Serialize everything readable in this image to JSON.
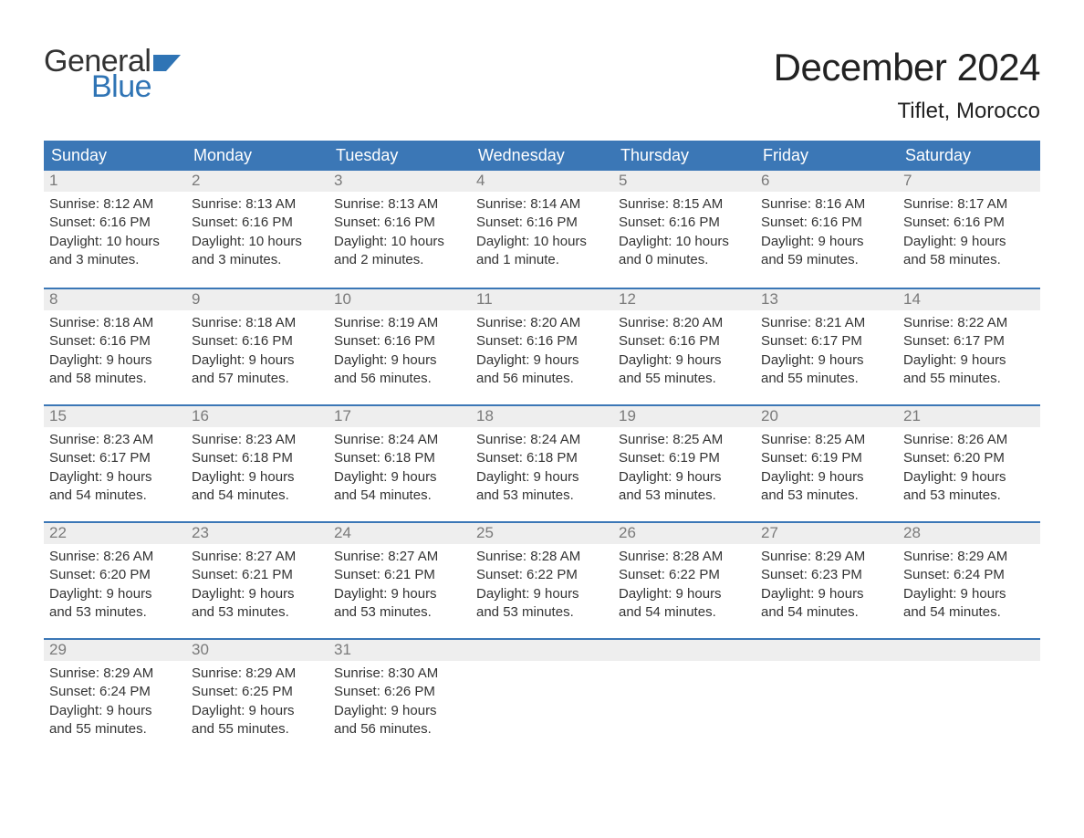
{
  "logo": {
    "word1": "General",
    "word2": "Blue"
  },
  "title": "December 2024",
  "location": "Tiflet, Morocco",
  "colors": {
    "header_bg": "#3b77b6",
    "header_text": "#ffffff",
    "week_border": "#3b77b6",
    "daynum_bg": "#eeeeee",
    "daynum_text": "#7a7a7a",
    "body_text": "#333333",
    "logo_blue": "#2f74b5",
    "background": "#ffffff"
  },
  "fonts": {
    "month_title_size_pt": 32,
    "location_size_pt": 18,
    "dow_size_pt": 14,
    "daynum_size_pt": 13,
    "body_size_pt": 11
  },
  "dow": [
    "Sunday",
    "Monday",
    "Tuesday",
    "Wednesday",
    "Thursday",
    "Friday",
    "Saturday"
  ],
  "weeks": [
    [
      {
        "n": "1",
        "sunrise": "Sunrise: 8:12 AM",
        "sunset": "Sunset: 6:16 PM",
        "d1": "Daylight: 10 hours",
        "d2": "and 3 minutes."
      },
      {
        "n": "2",
        "sunrise": "Sunrise: 8:13 AM",
        "sunset": "Sunset: 6:16 PM",
        "d1": "Daylight: 10 hours",
        "d2": "and 3 minutes."
      },
      {
        "n": "3",
        "sunrise": "Sunrise: 8:13 AM",
        "sunset": "Sunset: 6:16 PM",
        "d1": "Daylight: 10 hours",
        "d2": "and 2 minutes."
      },
      {
        "n": "4",
        "sunrise": "Sunrise: 8:14 AM",
        "sunset": "Sunset: 6:16 PM",
        "d1": "Daylight: 10 hours",
        "d2": "and 1 minute."
      },
      {
        "n": "5",
        "sunrise": "Sunrise: 8:15 AM",
        "sunset": "Sunset: 6:16 PM",
        "d1": "Daylight: 10 hours",
        "d2": "and 0 minutes."
      },
      {
        "n": "6",
        "sunrise": "Sunrise: 8:16 AM",
        "sunset": "Sunset: 6:16 PM",
        "d1": "Daylight: 9 hours",
        "d2": "and 59 minutes."
      },
      {
        "n": "7",
        "sunrise": "Sunrise: 8:17 AM",
        "sunset": "Sunset: 6:16 PM",
        "d1": "Daylight: 9 hours",
        "d2": "and 58 minutes."
      }
    ],
    [
      {
        "n": "8",
        "sunrise": "Sunrise: 8:18 AM",
        "sunset": "Sunset: 6:16 PM",
        "d1": "Daylight: 9 hours",
        "d2": "and 58 minutes."
      },
      {
        "n": "9",
        "sunrise": "Sunrise: 8:18 AM",
        "sunset": "Sunset: 6:16 PM",
        "d1": "Daylight: 9 hours",
        "d2": "and 57 minutes."
      },
      {
        "n": "10",
        "sunrise": "Sunrise: 8:19 AM",
        "sunset": "Sunset: 6:16 PM",
        "d1": "Daylight: 9 hours",
        "d2": "and 56 minutes."
      },
      {
        "n": "11",
        "sunrise": "Sunrise: 8:20 AM",
        "sunset": "Sunset: 6:16 PM",
        "d1": "Daylight: 9 hours",
        "d2": "and 56 minutes."
      },
      {
        "n": "12",
        "sunrise": "Sunrise: 8:20 AM",
        "sunset": "Sunset: 6:16 PM",
        "d1": "Daylight: 9 hours",
        "d2": "and 55 minutes."
      },
      {
        "n": "13",
        "sunrise": "Sunrise: 8:21 AM",
        "sunset": "Sunset: 6:17 PM",
        "d1": "Daylight: 9 hours",
        "d2": "and 55 minutes."
      },
      {
        "n": "14",
        "sunrise": "Sunrise: 8:22 AM",
        "sunset": "Sunset: 6:17 PM",
        "d1": "Daylight: 9 hours",
        "d2": "and 55 minutes."
      }
    ],
    [
      {
        "n": "15",
        "sunrise": "Sunrise: 8:23 AM",
        "sunset": "Sunset: 6:17 PM",
        "d1": "Daylight: 9 hours",
        "d2": "and 54 minutes."
      },
      {
        "n": "16",
        "sunrise": "Sunrise: 8:23 AM",
        "sunset": "Sunset: 6:18 PM",
        "d1": "Daylight: 9 hours",
        "d2": "and 54 minutes."
      },
      {
        "n": "17",
        "sunrise": "Sunrise: 8:24 AM",
        "sunset": "Sunset: 6:18 PM",
        "d1": "Daylight: 9 hours",
        "d2": "and 54 minutes."
      },
      {
        "n": "18",
        "sunrise": "Sunrise: 8:24 AM",
        "sunset": "Sunset: 6:18 PM",
        "d1": "Daylight: 9 hours",
        "d2": "and 53 minutes."
      },
      {
        "n": "19",
        "sunrise": "Sunrise: 8:25 AM",
        "sunset": "Sunset: 6:19 PM",
        "d1": "Daylight: 9 hours",
        "d2": "and 53 minutes."
      },
      {
        "n": "20",
        "sunrise": "Sunrise: 8:25 AM",
        "sunset": "Sunset: 6:19 PM",
        "d1": "Daylight: 9 hours",
        "d2": "and 53 minutes."
      },
      {
        "n": "21",
        "sunrise": "Sunrise: 8:26 AM",
        "sunset": "Sunset: 6:20 PM",
        "d1": "Daylight: 9 hours",
        "d2": "and 53 minutes."
      }
    ],
    [
      {
        "n": "22",
        "sunrise": "Sunrise: 8:26 AM",
        "sunset": "Sunset: 6:20 PM",
        "d1": "Daylight: 9 hours",
        "d2": "and 53 minutes."
      },
      {
        "n": "23",
        "sunrise": "Sunrise: 8:27 AM",
        "sunset": "Sunset: 6:21 PM",
        "d1": "Daylight: 9 hours",
        "d2": "and 53 minutes."
      },
      {
        "n": "24",
        "sunrise": "Sunrise: 8:27 AM",
        "sunset": "Sunset: 6:21 PM",
        "d1": "Daylight: 9 hours",
        "d2": "and 53 minutes."
      },
      {
        "n": "25",
        "sunrise": "Sunrise: 8:28 AM",
        "sunset": "Sunset: 6:22 PM",
        "d1": "Daylight: 9 hours",
        "d2": "and 53 minutes."
      },
      {
        "n": "26",
        "sunrise": "Sunrise: 8:28 AM",
        "sunset": "Sunset: 6:22 PM",
        "d1": "Daylight: 9 hours",
        "d2": "and 54 minutes."
      },
      {
        "n": "27",
        "sunrise": "Sunrise: 8:29 AM",
        "sunset": "Sunset: 6:23 PM",
        "d1": "Daylight: 9 hours",
        "d2": "and 54 minutes."
      },
      {
        "n": "28",
        "sunrise": "Sunrise: 8:29 AM",
        "sunset": "Sunset: 6:24 PM",
        "d1": "Daylight: 9 hours",
        "d2": "and 54 minutes."
      }
    ],
    [
      {
        "n": "29",
        "sunrise": "Sunrise: 8:29 AM",
        "sunset": "Sunset: 6:24 PM",
        "d1": "Daylight: 9 hours",
        "d2": "and 55 minutes."
      },
      {
        "n": "30",
        "sunrise": "Sunrise: 8:29 AM",
        "sunset": "Sunset: 6:25 PM",
        "d1": "Daylight: 9 hours",
        "d2": "and 55 minutes."
      },
      {
        "n": "31",
        "sunrise": "Sunrise: 8:30 AM",
        "sunset": "Sunset: 6:26 PM",
        "d1": "Daylight: 9 hours",
        "d2": "and 56 minutes."
      },
      {
        "n": "",
        "empty": true
      },
      {
        "n": "",
        "empty": true
      },
      {
        "n": "",
        "empty": true
      },
      {
        "n": "",
        "empty": true
      }
    ]
  ]
}
